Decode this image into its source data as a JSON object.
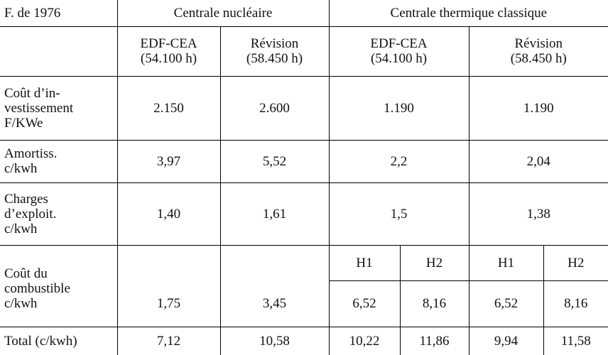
{
  "table": {
    "corner": "F. de 1976",
    "groups": [
      "Centrale nucléaire",
      "Centrale thermique classique"
    ],
    "subheaders": [
      [
        "EDF-CEA",
        "(54.100 h)"
      ],
      [
        "Révision",
        "(58.450 h)"
      ],
      [
        "EDF-CEA",
        "(54.100 h)"
      ],
      [
        "Révision",
        "(58.450 h)"
      ]
    ],
    "rows": [
      {
        "label": [
          "Coût d’in-",
          "vestissement",
          "F/KWe"
        ],
        "values": [
          "2.150",
          "2.600",
          "1.190",
          "1.190"
        ]
      },
      {
        "label": [
          "Amortiss.",
          "c/kwh"
        ],
        "values": [
          "3,97",
          "5,52",
          "2,2",
          "2,04"
        ]
      },
      {
        "label": [
          "Charges",
          "d’exploit.",
          "c/kwh"
        ],
        "values": [
          "1,40",
          "1,61",
          "1,5",
          "1,38"
        ]
      }
    ],
    "fuel": {
      "label": [
        "Coût du",
        "combustible",
        "c/kwh"
      ],
      "sub": [
        "H1",
        "H2",
        "H1",
        "H2"
      ],
      "values": [
        "1,75",
        "3,45",
        "6,52",
        "8,16",
        "6,52",
        "8,16"
      ]
    },
    "total": {
      "label": "Total (c/kwh)",
      "values": [
        "7,12",
        "10,58",
        "10,22",
        "11,86",
        "9,94",
        "11,58"
      ]
    }
  }
}
